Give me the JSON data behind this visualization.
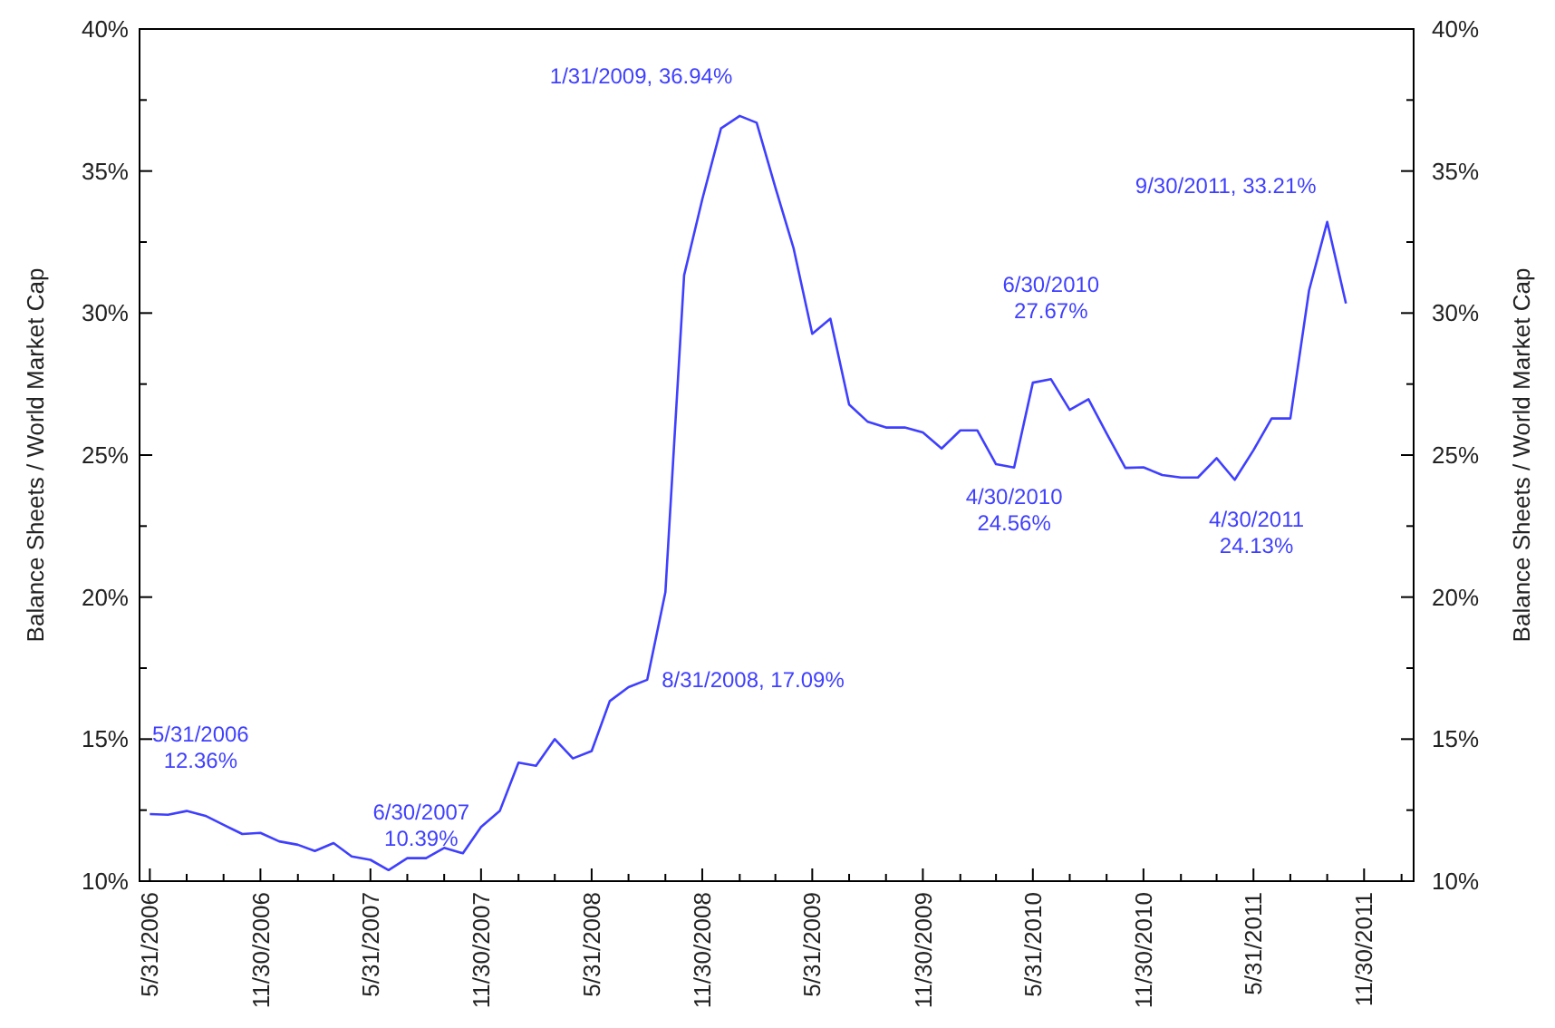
{
  "chart_data": {
    "type": "line",
    "ylabel": "Balance Sheets / World Market Cap",
    "y2label": "Balance Sheets / World Market Cap",
    "x": [
      "2006-05-31",
      "2006-06-30",
      "2006-07-31",
      "2006-08-31",
      "2006-09-30",
      "2006-10-31",
      "2006-11-30",
      "2006-12-31",
      "2007-01-31",
      "2007-02-28",
      "2007-03-31",
      "2007-04-30",
      "2007-05-31",
      "2007-06-30",
      "2007-07-31",
      "2007-08-31",
      "2007-09-30",
      "2007-10-31",
      "2007-11-30",
      "2007-12-31",
      "2008-01-31",
      "2008-02-29",
      "2008-03-31",
      "2008-04-30",
      "2008-05-31",
      "2008-06-30",
      "2008-07-31",
      "2008-08-31",
      "2008-09-30",
      "2008-10-31",
      "2008-11-30",
      "2008-12-31",
      "2009-01-31",
      "2009-02-28",
      "2009-03-31",
      "2009-04-30",
      "2009-05-31",
      "2009-06-30",
      "2009-07-31",
      "2009-08-31",
      "2009-09-30",
      "2009-10-31",
      "2009-11-30",
      "2009-12-31",
      "2010-01-31",
      "2010-02-28",
      "2010-03-31",
      "2010-04-30",
      "2010-05-31",
      "2010-06-30",
      "2010-07-31",
      "2010-08-31",
      "2010-09-30",
      "2010-10-31",
      "2010-11-30",
      "2010-12-31",
      "2011-01-31",
      "2011-02-28",
      "2011-03-31",
      "2011-04-30",
      "2011-05-31",
      "2011-06-30",
      "2011-07-31",
      "2011-08-31",
      "2011-09-30",
      "2011-10-31"
    ],
    "series": [
      {
        "color": "#3f3fff",
        "values": [
          12.36,
          12.34,
          12.47,
          12.3,
          11.98,
          11.66,
          11.7,
          11.4,
          11.28,
          11.06,
          11.34,
          10.87,
          10.75,
          10.39,
          10.81,
          10.81,
          11.17,
          10.98,
          11.91,
          12.47,
          14.17,
          14.06,
          15.0,
          14.32,
          14.58,
          16.34,
          16.83,
          17.09,
          20.17,
          31.33,
          34.0,
          36.5,
          36.94,
          36.7,
          34.42,
          32.29,
          29.27,
          29.8,
          26.78,
          26.17,
          25.97,
          25.97,
          25.8,
          25.23,
          25.87,
          25.87,
          24.68,
          24.56,
          27.55,
          27.67,
          26.59,
          26.97,
          25.76,
          24.55,
          24.57,
          24.3,
          24.21,
          24.21,
          24.89,
          24.13,
          25.17,
          26.29,
          26.29,
          30.8,
          33.21,
          30.34
        ]
      }
    ],
    "xlim": [
      "2006-05-14",
      "2012-02-20"
    ],
    "xticks": [
      {
        "value": "2006-05-31",
        "label": "5/31/2006"
      },
      {
        "value": "2006-07-31",
        "label": null
      },
      {
        "value": "2006-09-30",
        "label": null
      },
      {
        "value": "2006-11-30",
        "label": "11/30/2006"
      },
      {
        "value": "2007-01-31",
        "label": null
      },
      {
        "value": "2007-03-31",
        "label": null
      },
      {
        "value": "2007-05-31",
        "label": "5/31/2007"
      },
      {
        "value": "2007-07-31",
        "label": null
      },
      {
        "value": "2007-09-30",
        "label": null
      },
      {
        "value": "2007-11-30",
        "label": "11/30/2007"
      },
      {
        "value": "2008-01-31",
        "label": null
      },
      {
        "value": "2008-03-31",
        "label": null
      },
      {
        "value": "2008-05-31",
        "label": "5/31/2008"
      },
      {
        "value": "2008-07-31",
        "label": null
      },
      {
        "value": "2008-09-30",
        "label": null
      },
      {
        "value": "2008-11-30",
        "label": "11/30/2008"
      },
      {
        "value": "2009-01-31",
        "label": null
      },
      {
        "value": "2009-03-31",
        "label": null
      },
      {
        "value": "2009-05-31",
        "label": "5/31/2009"
      },
      {
        "value": "2009-07-31",
        "label": null
      },
      {
        "value": "2009-09-30",
        "label": null
      },
      {
        "value": "2009-11-30",
        "label": "11/30/2009"
      },
      {
        "value": "2010-01-31",
        "label": null
      },
      {
        "value": "2010-03-31",
        "label": null
      },
      {
        "value": "2010-05-31",
        "label": "5/31/2010"
      },
      {
        "value": "2010-07-31",
        "label": null
      },
      {
        "value": "2010-09-30",
        "label": null
      },
      {
        "value": "2010-11-30",
        "label": "11/30/2010"
      },
      {
        "value": "2011-01-31",
        "label": null
      },
      {
        "value": "2011-03-31",
        "label": null
      },
      {
        "value": "2011-05-31",
        "label": "5/31/2011"
      },
      {
        "value": "2011-07-31",
        "label": null
      },
      {
        "value": "2011-09-30",
        "label": null
      },
      {
        "value": "2011-11-30",
        "label": "11/30/2011"
      },
      {
        "value": "2012-01-31",
        "label": null
      }
    ],
    "ylim": [
      10,
      40
    ],
    "yticks": [
      {
        "value": 10,
        "label": "10%"
      },
      {
        "value": 12.5,
        "label": null
      },
      {
        "value": 15,
        "label": "15%"
      },
      {
        "value": 17.5,
        "label": null
      },
      {
        "value": 20,
        "label": "20%"
      },
      {
        "value": 22.5,
        "label": null
      },
      {
        "value": 25,
        "label": "25%"
      },
      {
        "value": 27.5,
        "label": null
      },
      {
        "value": 30,
        "label": "30%"
      },
      {
        "value": 32.5,
        "label": null
      },
      {
        "value": 35,
        "label": "35%"
      },
      {
        "value": 37.5,
        "label": null
      },
      {
        "value": 40,
        "label": "40%"
      }
    ],
    "y2lim": [
      10,
      40
    ],
    "y2ticks": [
      {
        "value": 10,
        "label": "10%"
      },
      {
        "value": 12.5,
        "label": null
      },
      {
        "value": 15,
        "label": "15%"
      },
      {
        "value": 17.5,
        "label": null
      },
      {
        "value": 20,
        "label": "20%"
      },
      {
        "value": 22.5,
        "label": null
      },
      {
        "value": 25,
        "label": "25%"
      },
      {
        "value": 27.5,
        "label": null
      },
      {
        "value": 30,
        "label": "30%"
      },
      {
        "value": 32.5,
        "label": null
      },
      {
        "value": 35,
        "label": "35%"
      },
      {
        "value": 37.5,
        "label": null
      },
      {
        "value": 40,
        "label": "40%"
      }
    ],
    "grid": false,
    "marker": "none",
    "line_style": "solid",
    "annotations": [
      {
        "text": "5/31/2006\n12.36%",
        "x": "2006-05-31",
        "y": 12.36
      },
      {
        "text": "6/30/2007\n10.39%",
        "x": "2007-06-30",
        "y": 10.39
      },
      {
        "text": "8/31/2008, 17.09%",
        "x": "2008-08-31",
        "y": 17.09
      },
      {
        "text": "1/31/2009, 36.94%",
        "x": "2009-01-31",
        "y": 36.94
      },
      {
        "text": "4/30/2010\n24.56%",
        "x": "2010-04-30",
        "y": 24.56
      },
      {
        "text": "6/30/2010\n27.67%",
        "x": "2010-06-30",
        "y": 27.67
      },
      {
        "text": "4/30/2011\n24.13%",
        "x": "2011-04-30",
        "y": 24.13
      },
      {
        "text": "9/30/2011, 33.21%",
        "x": "2011-09-30",
        "y": 33.21
      }
    ]
  }
}
